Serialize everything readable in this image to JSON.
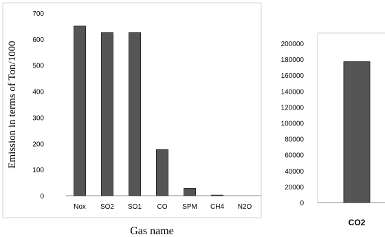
{
  "chart_data": [
    {
      "type": "bar",
      "title": "",
      "xlabel": "Gas name",
      "ylabel": "Emission in terms of Ton/1000",
      "categories": [
        "Nox",
        "SO2",
        "SO1",
        "CO",
        "SPM",
        "CH4",
        "N2O"
      ],
      "values": [
        650,
        625,
        625,
        177,
        28,
        2,
        0
      ],
      "ylim": [
        0,
        700
      ],
      "yticks": [
        "0",
        "100",
        "200",
        "300",
        "400",
        "500",
        "600",
        "700"
      ],
      "grid": false,
      "bar_color": "#555555"
    },
    {
      "type": "bar",
      "title": "",
      "categories": [
        "CO2"
      ],
      "values": [
        177000
      ],
      "ylim": [
        0,
        200000
      ],
      "yticks": [
        "0",
        "20000",
        "40000",
        "60000",
        "80000",
        "100000",
        "120000",
        "140000",
        "160000",
        "180000",
        "200000"
      ],
      "grid": false,
      "bar_color": "#555555"
    }
  ]
}
